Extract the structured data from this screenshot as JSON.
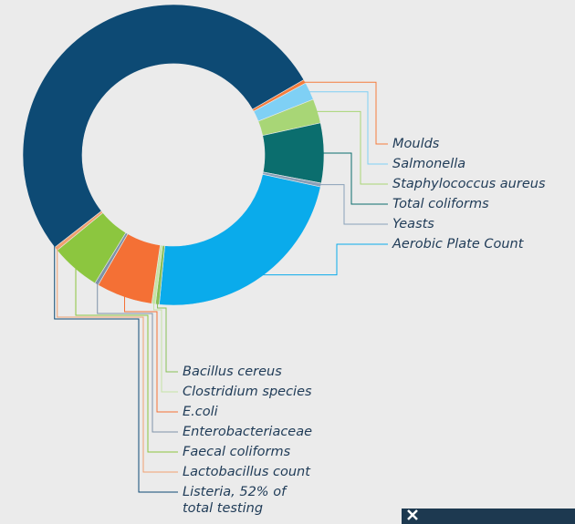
{
  "chart_data": {
    "type": "donut",
    "categories": [
      "Moulds",
      "Salmonella",
      "Staphylococcus aureus",
      "Total coliforms",
      "Yeasts",
      "Aerobic Plate Count",
      "Bacillus cereus",
      "Clostridium species",
      "E.coli",
      "Enterobacteriaceae",
      "Faecal coliforms",
      "Lactobacillus count",
      "Listeria, 52% of total testing"
    ],
    "values": [
      0.4,
      1.9,
      2.6,
      6.4,
      0.4,
      23,
      0.4,
      0.4,
      6,
      0.4,
      5.3,
      0.4,
      52
    ],
    "colors": [
      "#f47c3c",
      "#7fd0f5",
      "#a8d676",
      "#0b6e6e",
      "#8aa0b8",
      "#0aabeb",
      "#88c057",
      "#c5e3a6",
      "#f47035",
      "#7f93a8",
      "#8cc63f",
      "#f0a070",
      "#0d4a74"
    ]
  }
}
